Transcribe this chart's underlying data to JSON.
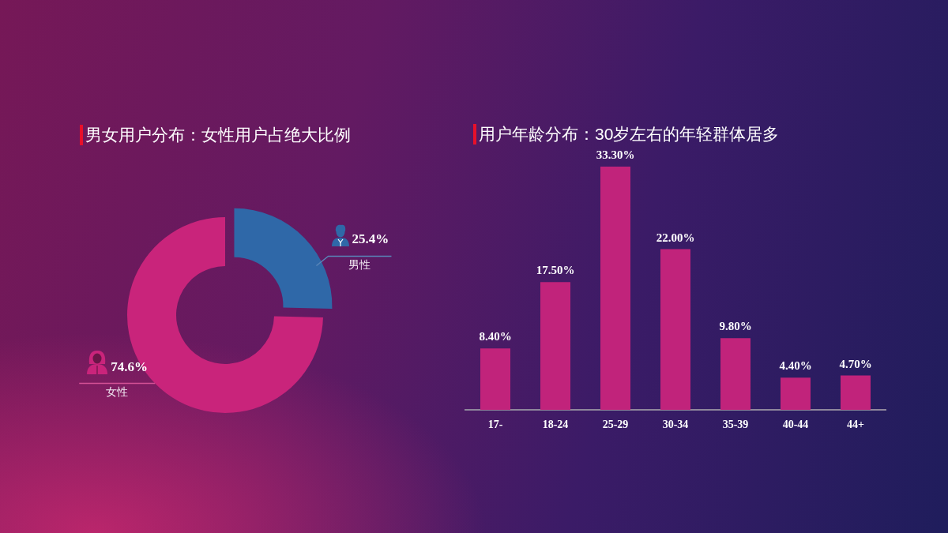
{
  "chart_data": [
    {
      "type": "donut",
      "title": "男女用户分布：女性用户占绝大比例",
      "categories": [
        "男性",
        "女性"
      ],
      "values": [
        25.4,
        74.6
      ],
      "colors": [
        "#2f68a8",
        "#c9247b"
      ],
      "value_labels": [
        "25.4%",
        "74.6%"
      ],
      "legend": "right"
    },
    {
      "type": "bar",
      "title": "用户年龄分布：30岁左右的年轻群体居多",
      "categories": [
        "17-",
        "18-24",
        "25-29",
        "30-34",
        "35-39",
        "40-44",
        "44+"
      ],
      "values": [
        8.4,
        17.5,
        33.3,
        22.0,
        9.8,
        4.4,
        4.7
      ],
      "color": "#c1237b",
      "value_labels": [
        "8.40%",
        "17.50%",
        "33.30%",
        "22.00%",
        "9.80%",
        "4.40%",
        "4.70%"
      ],
      "grid": false,
      "legend": false,
      "tick_labels": "x"
    }
  ]
}
